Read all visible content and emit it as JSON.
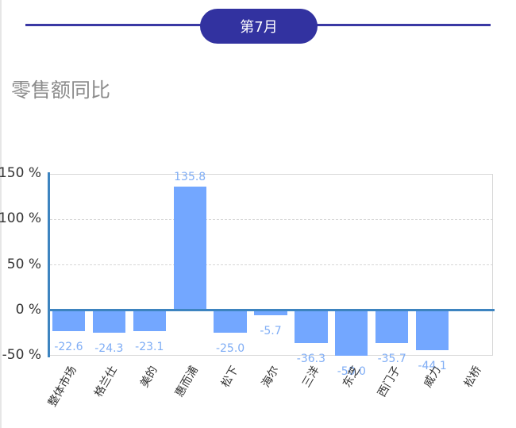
{
  "header": {
    "month_label": "第7月"
  },
  "title": "零售额同比",
  "colors": {
    "bar": "#73a7ff",
    "axis": "#3d84c0",
    "header": "#3232a0",
    "value_label": "#7fadf5"
  },
  "chart_data": {
    "type": "bar",
    "title": "零售额同比",
    "xlabel": "",
    "ylabel": "",
    "ylim": [
      -50,
      150
    ],
    "yticks": [
      "150 %",
      "100 %",
      "50 %",
      "0 %",
      "-50 %"
    ],
    "ytick_values": [
      150,
      100,
      50,
      0,
      -50
    ],
    "grid": "horizontal dashed",
    "categories": [
      "整体市场",
      "格兰仕",
      "美的",
      "惠而浦",
      "松下",
      "海尔",
      "三洋",
      "东芝",
      "西门子",
      "威力",
      "松桥"
    ],
    "values": [
      -22.6,
      -24.3,
      -23.1,
      135.8,
      -25.0,
      -5.7,
      -36.3,
      -50.0,
      -35.7,
      -44.1,
      null
    ],
    "value_labels": [
      "-22.6",
      "-24.3",
      "-23.1",
      "135.8",
      "-25.0",
      "-5.7",
      "-36.3",
      "-50.0",
      "-35.7",
      "-44.1",
      ""
    ]
  }
}
